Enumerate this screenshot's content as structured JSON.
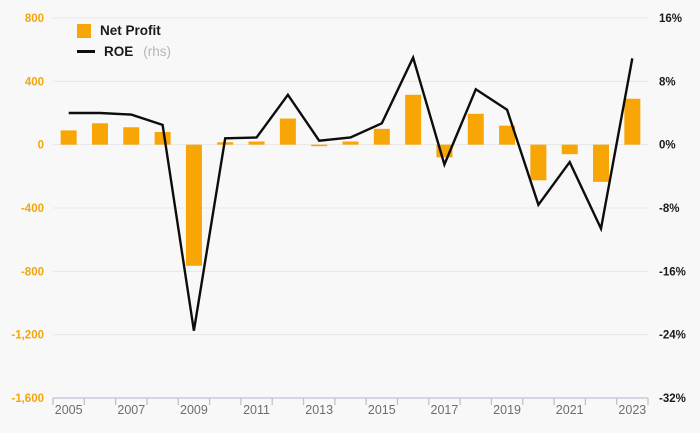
{
  "page": {
    "background": "#f8f8f8"
  },
  "legend": {
    "items": [
      {
        "label": "Net Profit",
        "type": "bar"
      },
      {
        "label": "ROE",
        "suffix": "(rhs)",
        "type": "line"
      }
    ]
  },
  "chart_data": {
    "type": "bar+line",
    "title": "",
    "categories": [
      "2005",
      "2006",
      "2007",
      "2008",
      "2009",
      "2010",
      "2011",
      "2012",
      "2013",
      "2014",
      "2015",
      "2016",
      "2017",
      "2018",
      "2019",
      "2020",
      "2021",
      "2022",
      "2023"
    ],
    "series": [
      {
        "name": "Net Profit",
        "type": "bar",
        "axis": "left",
        "color": "#F7A606",
        "values": [
          90,
          135,
          110,
          80,
          -765,
          15,
          20,
          165,
          -10,
          20,
          100,
          315,
          -80,
          195,
          120,
          -225,
          -60,
          -235,
          290
        ]
      },
      {
        "name": "ROE",
        "type": "line",
        "axis": "right",
        "color": "#0d0d0d",
        "values": [
          4.0,
          4.0,
          3.8,
          2.5,
          -23.5,
          0.8,
          0.9,
          6.3,
          0.5,
          0.9,
          2.7,
          11.0,
          -2.5,
          7.0,
          4.4,
          -7.6,
          -2.2,
          -10.6,
          10.9
        ]
      }
    ],
    "left_axis": {
      "tick_labels": [
        "800",
        "400",
        "0",
        "-400",
        "-800",
        "-1,200",
        "-1,600"
      ],
      "tick_values": [
        800,
        400,
        0,
        -400,
        -800,
        -1200,
        -1600
      ],
      "range": [
        -1600,
        800
      ],
      "color": "#F2A50C"
    },
    "right_axis": {
      "tick_labels": [
        "16%",
        "8%",
        "0%",
        "-8%",
        "-16%",
        "-24%",
        "-32%"
      ],
      "tick_values": [
        16,
        8,
        0,
        -8,
        -16,
        -24,
        -32
      ],
      "range": [
        -32,
        16
      ],
      "color": "#1a1a1a"
    },
    "x_axis": {
      "tick_labels": [
        "2005",
        "2007",
        "2009",
        "2011",
        "2013",
        "2015",
        "2017",
        "2019",
        "2021",
        "2023"
      ],
      "color": "#6e6e6e"
    },
    "grid": true,
    "gridline_color": "#e7e7e7",
    "axisline_color": "#bac3d4",
    "legend_position": "top-left"
  }
}
